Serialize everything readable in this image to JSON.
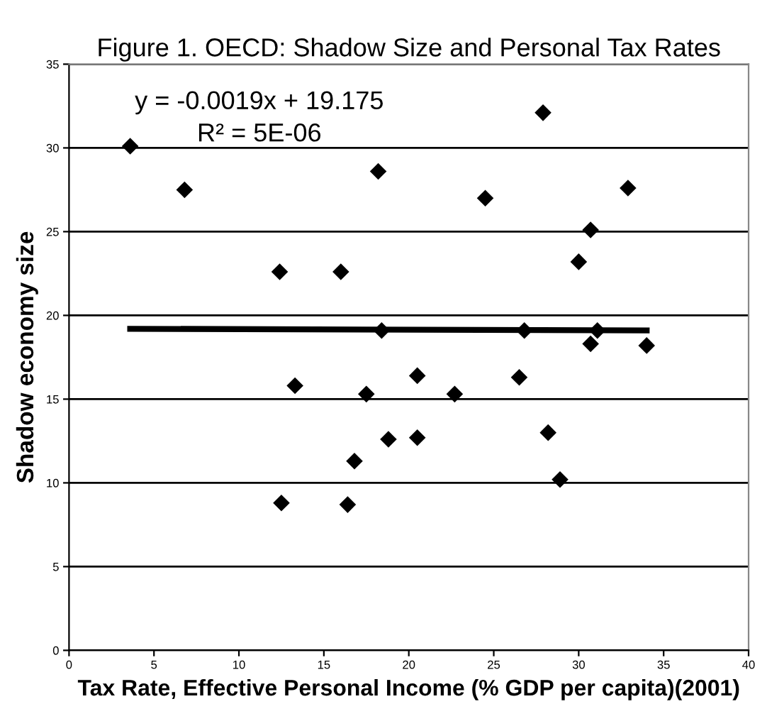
{
  "chart_data": {
    "type": "scatter",
    "title": "Figure 1. OECD: Shadow Size and Personal Tax Rates",
    "xlabel": "Tax Rate, Effective Personal Income (% GDP per capita)(2001)",
    "ylabel": "Shadow economy size",
    "annotations": [
      "y = -0.0019x + 19.175",
      "R² = 5E-06"
    ],
    "series": [
      {
        "color": "#000000",
        "marker": "diamond",
        "x": [
          3.6,
          6.8,
          12.4,
          16.0,
          18.2,
          24.5,
          27.9,
          30.0,
          30.7,
          32.9,
          18.4,
          26.8,
          31.1,
          30.7,
          34.0,
          13.3,
          17.5,
          20.5,
          22.7,
          26.5,
          18.8,
          20.5,
          16.8,
          28.2,
          12.5,
          16.4,
          28.9
        ],
        "values": [
          30.1,
          27.5,
          22.6,
          22.6,
          28.6,
          27.0,
          32.1,
          23.2,
          25.1,
          27.6,
          19.1,
          19.1,
          19.1,
          18.3,
          18.2,
          15.8,
          15.3,
          16.4,
          15.3,
          16.3,
          12.6,
          12.7,
          11.3,
          13.0,
          8.8,
          8.7,
          10.2
        ]
      },
      {
        "type": "line",
        "color": "#000000",
        "marker": "none",
        "x": [
          3.6,
          34.0
        ],
        "values": [
          19.2,
          19.1
        ]
      }
    ],
    "xlim": [
      0,
      40
    ],
    "ylim": [
      0,
      35
    ],
    "xticks": [
      0,
      5,
      10,
      15,
      20,
      25,
      30,
      35,
      40
    ],
    "yticks": [
      0,
      5,
      10,
      15,
      20,
      25,
      30,
      35
    ],
    "grid": "y"
  }
}
